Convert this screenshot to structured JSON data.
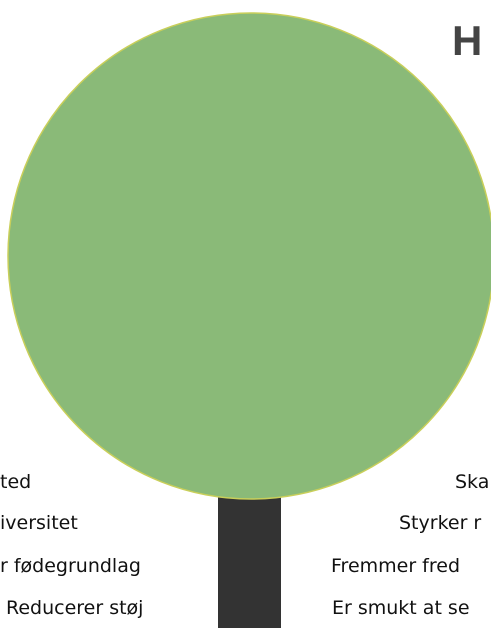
{
  "title": "H",
  "left_labels": [
    "ted",
    "iversitet",
    "r fødegrundlag",
    "Reducerer støj"
  ],
  "right_labels": [
    "Ska",
    "Styrker r",
    "Fremmer fred",
    "Er smukt at se"
  ]
}
